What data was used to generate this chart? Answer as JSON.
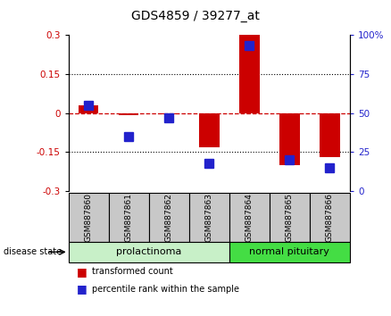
{
  "title": "GDS4859 / 39277_at",
  "samples": [
    "GSM887860",
    "GSM887861",
    "GSM887862",
    "GSM887863",
    "GSM887864",
    "GSM887865",
    "GSM887866"
  ],
  "red_values": [
    0.03,
    -0.01,
    -0.005,
    -0.13,
    0.3,
    -0.2,
    -0.17
  ],
  "blue_values_pct": [
    55,
    35,
    47,
    18,
    93,
    20,
    15
  ],
  "ylim_left": [
    -0.3,
    0.3
  ],
  "ylim_right": [
    0,
    100
  ],
  "yticks_left": [
    -0.3,
    -0.15,
    0,
    0.15,
    0.3
  ],
  "yticks_right": [
    0,
    25,
    50,
    75,
    100
  ],
  "ytick_labels_left": [
    "-0.3",
    "-0.15",
    "0",
    "0.15",
    "0.3"
  ],
  "ytick_labels_right": [
    "0",
    "25",
    "50",
    "75",
    "100%"
  ],
  "left_color": "#cc0000",
  "right_color": "#2222cc",
  "group1_label": "prolactinoma",
  "group2_label": "normal pituitary",
  "group1_indices": [
    0,
    1,
    2,
    3
  ],
  "group2_indices": [
    4,
    5,
    6
  ],
  "disease_state_label": "disease state",
  "legend_red": "transformed count",
  "legend_blue": "percentile rank within the sample",
  "bar_width": 0.5,
  "blue_marker_size": 7,
  "group1_color": "#c8f0c8",
  "group2_color": "#44dd44",
  "header_color": "#c8c8c8",
  "background_color": "#ffffff",
  "title_fontsize": 10,
  "tick_fontsize": 7.5,
  "sample_fontsize": 6.5,
  "group_fontsize": 8,
  "legend_fontsize": 7,
  "disease_fontsize": 7
}
